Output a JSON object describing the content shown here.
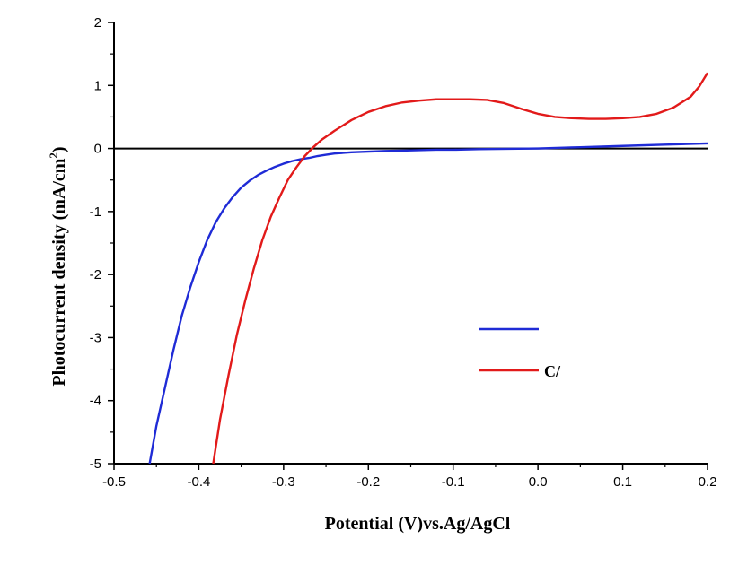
{
  "chart_data": {
    "type": "line",
    "title": "",
    "xlabel": "Potential (V)vs.Ag/AgCl",
    "ylabel": "Photocurrent density (mA/cm",
    "ylabel_sup": "2",
    "ylabel_close": ")",
    "xlim": [
      -0.5,
      0.2
    ],
    "ylim": [
      -5,
      2
    ],
    "x_ticks": [
      -0.5,
      -0.4,
      -0.3,
      -0.2,
      -0.1,
      0.0,
      0.1,
      0.2
    ],
    "x_tick_labels": [
      "-0.5",
      "-0.4",
      "-0.3",
      "-0.2",
      "-0.1",
      "0.0",
      "0.1",
      "0.2"
    ],
    "y_ticks": [
      -5,
      -4,
      -3,
      -2,
      -1,
      0,
      1,
      2
    ],
    "y_tick_labels": [
      "-5",
      "-4",
      "-3",
      "-2",
      "-1",
      "0",
      "1",
      "2"
    ],
    "grid": false,
    "legend_position": "lower-right",
    "series": [
      {
        "name": "",
        "color": "#1f2bd6",
        "x": [
          -0.458,
          -0.45,
          -0.44,
          -0.43,
          -0.42,
          -0.41,
          -0.4,
          -0.39,
          -0.38,
          -0.37,
          -0.36,
          -0.35,
          -0.34,
          -0.33,
          -0.32,
          -0.31,
          -0.3,
          -0.29,
          -0.28,
          -0.27,
          -0.26,
          -0.25,
          -0.24,
          -0.22,
          -0.2,
          -0.18,
          -0.15,
          -0.12,
          -0.1,
          -0.07,
          0.0,
          0.05,
          0.1,
          0.15,
          0.2
        ],
        "y": [
          -5.0,
          -4.4,
          -3.8,
          -3.2,
          -2.65,
          -2.2,
          -1.8,
          -1.45,
          -1.17,
          -0.95,
          -0.77,
          -0.62,
          -0.51,
          -0.42,
          -0.35,
          -0.29,
          -0.24,
          -0.2,
          -0.17,
          -0.15,
          -0.12,
          -0.1,
          -0.08,
          -0.06,
          -0.05,
          -0.04,
          -0.03,
          -0.02,
          -0.02,
          -0.01,
          0.0,
          0.02,
          0.04,
          0.06,
          0.08
        ]
      },
      {
        "name": "",
        "color": "#e21a1a",
        "x": [
          -0.383,
          -0.375,
          -0.365,
          -0.355,
          -0.345,
          -0.335,
          -0.325,
          -0.315,
          -0.305,
          -0.295,
          -0.285,
          -0.275,
          -0.265,
          -0.255,
          -0.24,
          -0.22,
          -0.2,
          -0.18,
          -0.16,
          -0.14,
          -0.12,
          -0.1,
          -0.08,
          -0.06,
          -0.04,
          -0.02,
          0.0,
          0.02,
          0.04,
          0.06,
          0.08,
          0.1,
          0.12,
          0.14,
          0.16,
          0.18,
          0.19,
          0.2
        ],
        "y": [
          -5.0,
          -4.3,
          -3.6,
          -2.95,
          -2.4,
          -1.9,
          -1.45,
          -1.08,
          -0.78,
          -0.5,
          -0.3,
          -0.12,
          0.02,
          0.14,
          0.28,
          0.45,
          0.58,
          0.67,
          0.73,
          0.76,
          0.78,
          0.78,
          0.78,
          0.77,
          0.72,
          0.63,
          0.55,
          0.5,
          0.48,
          0.47,
          0.47,
          0.48,
          0.5,
          0.55,
          0.65,
          0.82,
          0.98,
          1.2
        ]
      }
    ],
    "legend": [
      {
        "color": "#1f2bd6",
        "label": ""
      },
      {
        "color": "#e21a1a",
        "label": "C/"
      }
    ]
  }
}
